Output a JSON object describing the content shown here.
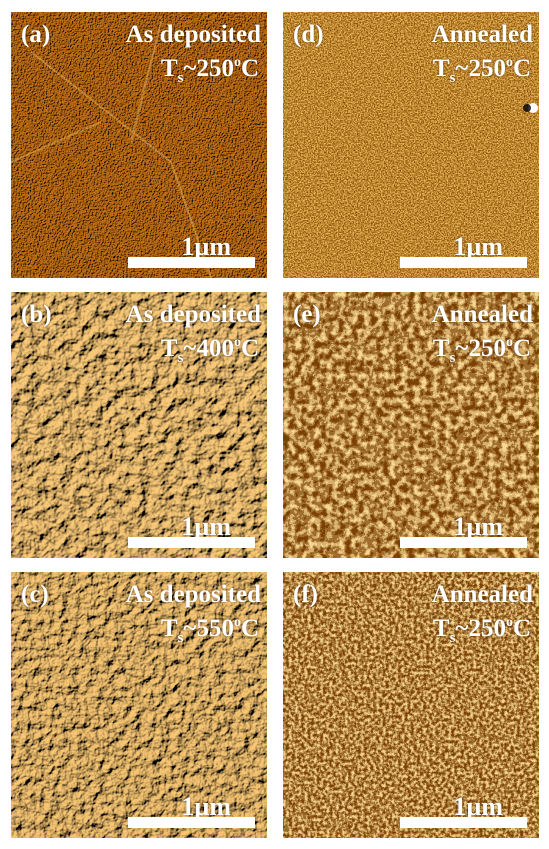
{
  "panels": [
    {
      "id": "a",
      "label": "(a)",
      "condition": "As deposited",
      "ts_symbol": "T",
      "ts_sub": "s",
      "ts_prefix": "~",
      "ts_value": "250",
      "ts_deg": "o",
      "ts_unit": "C",
      "scale": "1µm",
      "texture": "fine-scratched"
    },
    {
      "id": "b",
      "label": "(b)",
      "condition": "As deposited",
      "ts_symbol": "T",
      "ts_sub": "s",
      "ts_prefix": "~",
      "ts_value": "400",
      "ts_deg": "o",
      "ts_unit": "C",
      "scale": "1µm",
      "texture": "coarse-grain"
    },
    {
      "id": "c",
      "label": "(c)",
      "condition": "As deposited",
      "ts_symbol": "T",
      "ts_sub": "s",
      "ts_prefix": "~",
      "ts_value": "550",
      "ts_deg": "o",
      "ts_unit": "C",
      "scale": "1µm",
      "texture": "coarse-grain"
    },
    {
      "id": "d",
      "label": "(d)",
      "condition": "Annealed",
      "ts_symbol": "T",
      "ts_sub": "s",
      "ts_prefix": "~",
      "ts_value": "250",
      "ts_deg": "o",
      "ts_unit": "C",
      "scale": "1µm",
      "texture": "fine-speckle"
    },
    {
      "id": "e",
      "label": "(e)",
      "condition": "Annealed",
      "ts_symbol": "T",
      "ts_sub": "s",
      "ts_prefix": "~",
      "ts_value": "250",
      "ts_deg": "o",
      "ts_unit": "C",
      "scale": "1µm",
      "texture": "medium-speckle"
    },
    {
      "id": "f",
      "label": "(f)",
      "condition": "Annealed",
      "ts_symbol": "T",
      "ts_sub": "s",
      "ts_prefix": "~",
      "ts_value": "250",
      "ts_deg": "o",
      "ts_unit": "C",
      "scale": "1µm",
      "texture": "fine-speckle"
    }
  ],
  "colors": {
    "base": "#a86a10",
    "highlight": "#f4d28a",
    "shadow": "#5a3204",
    "text": "#ffffff"
  }
}
